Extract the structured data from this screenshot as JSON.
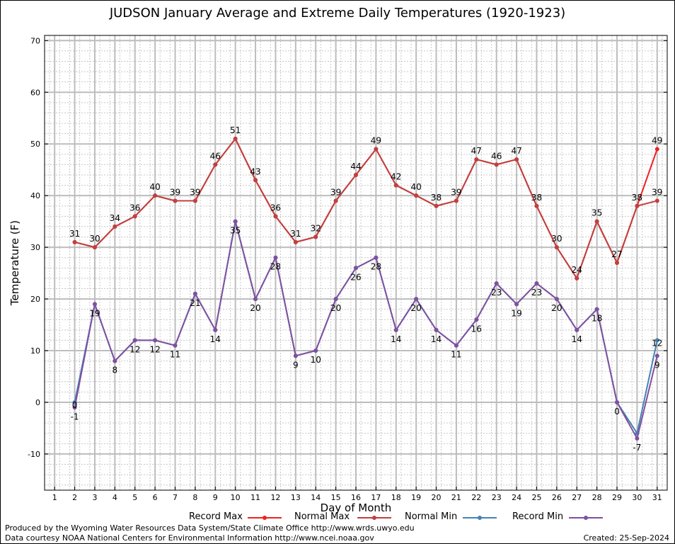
{
  "chart_data": {
    "type": "line",
    "title": "JUDSON January Average and Extreme Daily Temperatures (1920-1923)",
    "xlabel": "Day of Month",
    "ylabel": "Temperature (F)",
    "xlim": [
      0.5,
      31.5
    ],
    "ylim": [
      -17,
      71
    ],
    "yticks": [
      -10,
      0,
      10,
      20,
      30,
      40,
      50,
      60,
      70
    ],
    "x": [
      1,
      2,
      3,
      4,
      5,
      6,
      7,
      8,
      9,
      10,
      11,
      12,
      13,
      14,
      15,
      16,
      17,
      18,
      19,
      20,
      21,
      22,
      23,
      24,
      25,
      26,
      27,
      28,
      29,
      30,
      31
    ],
    "grid": true,
    "series": [
      {
        "name": "Record Max",
        "color": "#ee2222",
        "values": [
          null,
          31,
          30,
          34,
          36,
          40,
          39,
          39,
          46,
          51,
          43,
          36,
          31,
          32,
          39,
          44,
          49,
          42,
          40,
          38,
          39,
          47,
          46,
          47,
          38,
          30,
          24,
          35,
          27,
          38,
          49
        ]
      },
      {
        "name": "Normal Max",
        "color": "#c04040",
        "values": [
          null,
          31,
          30,
          34,
          36,
          40,
          39,
          39,
          46,
          51,
          43,
          36,
          31,
          32,
          39,
          44,
          49,
          42,
          40,
          38,
          39,
          47,
          46,
          47,
          38,
          30,
          24,
          35,
          27,
          38,
          39
        ]
      },
      {
        "name": "Normal Min",
        "color": "#4682b4",
        "values": [
          null,
          0,
          19,
          8,
          12,
          12,
          11,
          21,
          14,
          35,
          20,
          28,
          9,
          10,
          20,
          26,
          28,
          14,
          20,
          14,
          11,
          16,
          23,
          19,
          23,
          20,
          14,
          18,
          0,
          -6,
          12
        ]
      },
      {
        "name": "Record Min",
        "color": "#8050a0",
        "values": [
          null,
          -1,
          19,
          8,
          12,
          12,
          11,
          21,
          14,
          35,
          20,
          28,
          9,
          10,
          20,
          26,
          28,
          14,
          20,
          14,
          11,
          16,
          23,
          19,
          23,
          20,
          14,
          18,
          0,
          -7,
          9
        ]
      }
    ],
    "labels_above": [
      null,
      31,
      30,
      34,
      36,
      40,
      39,
      39,
      46,
      51,
      43,
      36,
      31,
      32,
      39,
      44,
      49,
      42,
      40,
      38,
      39,
      47,
      46,
      47,
      38,
      30,
      24,
      35,
      27,
      38,
      49
    ],
    "labels_below": [
      null,
      -1,
      19,
      8,
      12,
      12,
      11,
      21,
      14,
      35,
      20,
      28,
      9,
      10,
      20,
      26,
      28,
      14,
      20,
      14,
      11,
      16,
      23,
      19,
      23,
      20,
      14,
      18,
      0,
      -7,
      9
    ],
    "extra_labels": [
      {
        "day": 2,
        "value": 0,
        "text": "0"
      },
      {
        "day": 31,
        "value": 39,
        "text": "39"
      },
      {
        "day": 31,
        "value": 12,
        "text": "12"
      }
    ]
  },
  "footer": {
    "produced": "Produced by the Wyoming Water Resources Data System/State Climate Office http://www.wrds.uwyo.edu",
    "courtesy": "Data courtesy NOAA National Centers for Environmental Information http://www.ncei.noaa.gov",
    "created": "Created:  25-Sep-2024"
  }
}
